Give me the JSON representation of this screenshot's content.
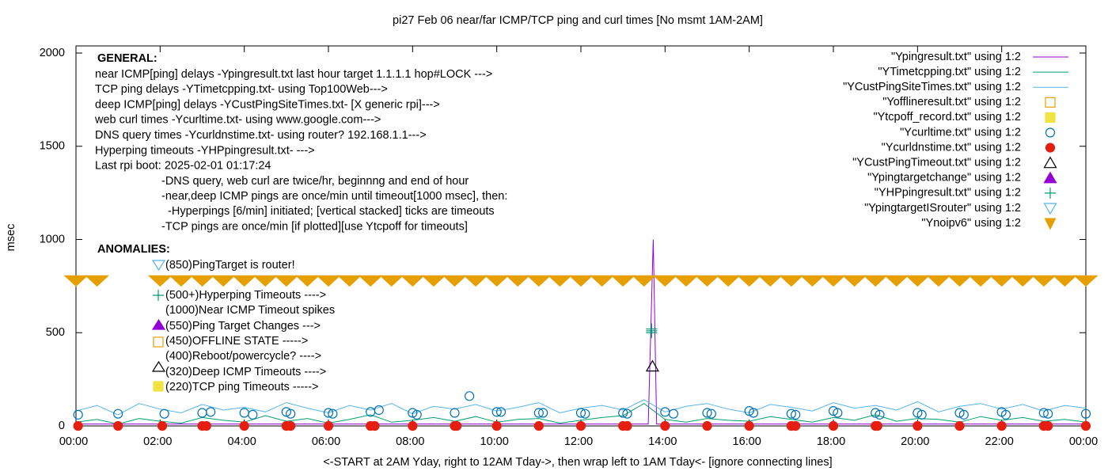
{
  "chart_data": {
    "type": "line",
    "title": "pi27 Feb 06  near/far ICMP/TCP ping and curl times [No msmt 1AM-2AM]",
    "x_label": "<-START at 2AM Yday, right to 12AM Tday->, then wrap left to 1AM Tday<- [ignore connecting lines]",
    "y_label": "msec",
    "xlim": [
      0,
      24
    ],
    "ylim": [
      0,
      2000
    ],
    "xticks": [
      {
        "value": 0,
        "label": "00:00"
      },
      {
        "value": 2,
        "label": "02:00"
      },
      {
        "value": 4,
        "label": "04:00"
      },
      {
        "value": 6,
        "label": "06:00"
      },
      {
        "value": 8,
        "label": "08:00"
      },
      {
        "value": 10,
        "label": "10:00"
      },
      {
        "value": 12,
        "label": "12:00"
      },
      {
        "value": 14,
        "label": "14:00"
      },
      {
        "value": 16,
        "label": "16:00"
      },
      {
        "value": 18,
        "label": "18:00"
      },
      {
        "value": 20,
        "label": "20:00"
      },
      {
        "value": 22,
        "label": "22:00"
      },
      {
        "value": 24,
        "label": "00:00"
      }
    ],
    "yticks": [
      0,
      500,
      1000,
      1500,
      2000
    ],
    "x": [
      0,
      0.5,
      1,
      1.5,
      2,
      2.5,
      3,
      3.5,
      4,
      4.5,
      5,
      5.5,
      6,
      6.5,
      7,
      7.5,
      8,
      8.5,
      9,
      9.5,
      10,
      10.5,
      11,
      11.5,
      12,
      12.5,
      13,
      13.5,
      14,
      14.5,
      15,
      15.5,
      16,
      16.5,
      17,
      17.5,
      18,
      18.5,
      19,
      19.5,
      20,
      20.5,
      21,
      21.5,
      22,
      22.5,
      23,
      23.5,
      24
    ],
    "series": [
      {
        "name": "\"Ypingresult.txt\" using 1:2",
        "color": "#9400d3",
        "marker": "line",
        "x": [
          0,
          13.6,
          13.72,
          13.8,
          24
        ],
        "values": [
          10,
          10,
          1000,
          10,
          10
        ]
      },
      {
        "name": "\"YTimetcpping.txt\" using 1:2",
        "color": "#009e73",
        "marker": "line",
        "values": [
          20,
          35,
          10,
          40,
          25,
          15,
          45,
          30,
          20,
          55,
          25,
          40,
          15,
          35,
          60,
          20,
          30,
          45,
          25,
          50,
          20,
          35,
          40,
          15,
          30,
          45,
          55,
          120,
          35,
          20,
          40,
          30,
          25,
          50,
          35,
          20,
          45,
          30,
          60,
          25,
          40,
          35,
          20,
          50,
          30,
          45,
          25,
          35,
          20
        ]
      },
      {
        "name": "\"YCustPingSiteTimes.txt\" using 1:2",
        "color": "#56b4e9",
        "marker": "line",
        "values": [
          80,
          110,
          60,
          120,
          90,
          70,
          115,
          85,
          100,
          75,
          125,
          95,
          70,
          110,
          85,
          120,
          65,
          105,
          90,
          115,
          80,
          100,
          125,
          70,
          95,
          110,
          85,
          140,
          75,
          105,
          120,
          90,
          70,
          115,
          100,
          80,
          125,
          95,
          110,
          85,
          130,
          75,
          105,
          120,
          90,
          115,
          80,
          110,
          95
        ]
      },
      {
        "name": "\"Yofflineresult.txt\" using 1:2",
        "color": "#e69f00",
        "marker": "square",
        "x": [],
        "values": []
      },
      {
        "name": "\"Ytcpoff_record.txt\" using 1:2",
        "color": "#f0e442",
        "marker": "filled-square",
        "x": [],
        "values": []
      },
      {
        "name": "\"Ycurltime.txt\" using 1:2",
        "color": "#0072b2",
        "marker": "circle",
        "x": [
          0.05,
          1,
          2.1,
          3,
          3.2,
          4,
          4.2,
          5,
          5.1,
          6,
          6.1,
          7,
          7.2,
          8,
          8.1,
          9,
          9.35,
          10,
          10.1,
          11,
          11.1,
          12,
          12.1,
          13,
          13.1,
          14,
          14.2,
          15,
          15.1,
          16,
          16.1,
          17,
          17.1,
          18,
          18.1,
          19,
          19.1,
          20,
          20.1,
          21,
          21.1,
          22,
          22.1,
          23,
          23.1,
          24
        ],
        "values": [
          60,
          65,
          65,
          70,
          75,
          70,
          60,
          75,
          65,
          70,
          65,
          75,
          85,
          70,
          60,
          70,
          160,
          75,
          75,
          70,
          70,
          70,
          65,
          70,
          65,
          75,
          65,
          70,
          65,
          80,
          70,
          65,
          60,
          80,
          70,
          70,
          60,
          70,
          60,
          70,
          60,
          75,
          60,
          70,
          65,
          65
        ]
      },
      {
        "name": "\"Ycurldnstime.txt\" using 1:2",
        "color": "#e51e10",
        "marker": "dot",
        "x": [
          0.05,
          1,
          2.05,
          3,
          3.1,
          4,
          5,
          5.1,
          6,
          7,
          7.1,
          8,
          9,
          9.05,
          10,
          11,
          12,
          13,
          13.1,
          14,
          15,
          16,
          17,
          17.1,
          18,
          19,
          19.05,
          20,
          21,
          22,
          23,
          23.1,
          24
        ],
        "values": [
          0,
          0,
          0,
          0,
          0,
          0,
          0,
          0,
          0,
          0,
          0,
          0,
          0,
          0,
          0,
          0,
          0,
          0,
          0,
          0,
          0,
          0,
          0,
          0,
          0,
          0,
          0,
          0,
          0,
          0,
          0,
          0,
          0
        ]
      },
      {
        "name": "\"YCustPingTimeout.txt\" using 1:2",
        "color": "#000000",
        "marker": "triangle",
        "x": [
          13.7
        ],
        "values": [
          320
        ]
      },
      {
        "name": "\"Ypingtargetchange\" using 1:2",
        "color": "#9400d3",
        "marker": "filled-triangle",
        "x": [],
        "values": []
      },
      {
        "name": "\"YHPpingresult.txt\" using 1:2",
        "color": "#009e73",
        "marker": "plus",
        "x": [
          13.68,
          13.68,
          13.68
        ],
        "values": [
          500,
          510,
          520
        ]
      },
      {
        "name": "\"YpingtargetISrouter\" using 1:2",
        "color": "#56b4e9",
        "marker": "triangle-down",
        "x": [],
        "values": []
      },
      {
        "name": "\"Ynoipv6\" using 1:2",
        "color": "#e69f00",
        "marker": "filled-triangle-down",
        "values": [
          780,
          780,
          null,
          null,
          780,
          780,
          780,
          780,
          780,
          780,
          780,
          780,
          780,
          780,
          780,
          780,
          780,
          780,
          780,
          780,
          780,
          780,
          780,
          780,
          780,
          780,
          780,
          780,
          780,
          780,
          780,
          780,
          780,
          780,
          780,
          780,
          780,
          780,
          780,
          780,
          780,
          780,
          780,
          780,
          780,
          780,
          780,
          780,
          780
        ]
      }
    ],
    "notes": {
      "general_title": "GENERAL:",
      "general": [
        "near ICMP[ping] delays -Ypingresult.txt last hour target 1.1.1.1 hop#LOCK --->",
        "TCP ping delays -YTimetcpping.txt- using Top100Web--->",
        "deep ICMP[ping] delays -YCustPingSiteTimes.txt- [X generic rpi]--->",
        "web curl times -Ycurltime.txt- using www.google.com--->",
        "DNS query times -Ycurldnstime.txt- using router? 192.168.1.1--->",
        "Hyperping timeouts -YHPpingresult.txt- --->",
        "Last rpi boot: 2025-02-01 01:17:24"
      ],
      "details": [
        "-DNS query, web curl are twice/hr, beginnng and end of hour",
        "-near,deep ICMP pings are once/min until timeout[1000 msec], then:",
        "  -Hyperpings [6/min] initiated; [vertical stacked] ticks are timeouts",
        "-TCP pings are once/min [if plotted][use Ytcpoff for timeouts]"
      ],
      "anomalies_title": "ANOMALIES:",
      "anomalies": [
        "(850)PingTarget is router!",
        "(500+)Hyperping Timeouts ---->",
        "(1000)Near ICMP Timeout spikes",
        "(550)Ping Target Changes --->",
        "(450)OFFLINE STATE ----->",
        "(400)Reboot/powercycle? ---->",
        "(320)Deep ICMP Timeouts ---->",
        "(220)TCP ping Timeouts ----->"
      ]
    }
  }
}
